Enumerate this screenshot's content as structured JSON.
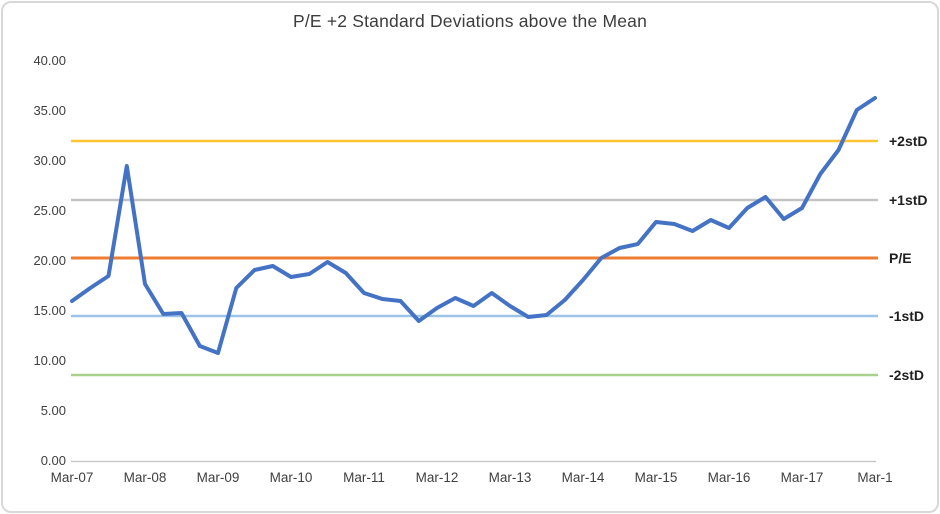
{
  "chart_data": {
    "type": "line",
    "title": "P/E +2 Standard Deviations above the Mean",
    "x_categories": [
      "Mar-07",
      "Mar-08",
      "Mar-09",
      "Mar-10",
      "Mar-11",
      "Mar-12",
      "Mar-13",
      "Mar-14",
      "Mar-15",
      "Mar-16",
      "Mar-17",
      "Mar-1"
    ],
    "y_axis": {
      "min": 0,
      "max": 40,
      "ticks": [
        {
          "label": "0.00",
          "value": 0
        },
        {
          "label": "5.00",
          "value": 5
        },
        {
          "label": "10.00",
          "value": 10
        },
        {
          "label": "15.00",
          "value": 15
        },
        {
          "label": "20.00",
          "value": 20
        },
        {
          "label": "25.00",
          "value": 25
        },
        {
          "label": "30.00",
          "value": 30
        },
        {
          "label": "35.00",
          "value": 35
        },
        {
          "label": "40.00",
          "value": 40
        }
      ]
    },
    "grid": false,
    "legend_position": "right-edge-labels",
    "series": [
      {
        "name": "P/E",
        "color": "#4472C4",
        "x": [
          "Mar-07",
          "Jun-07",
          "Sep-07",
          "Dec-07",
          "Mar-08",
          "Jun-08",
          "Sep-08",
          "Dec-08",
          "Mar-09",
          "Jun-09",
          "Sep-09",
          "Dec-09",
          "Mar-10",
          "Jun-10",
          "Sep-10",
          "Dec-10",
          "Mar-11",
          "Jun-11",
          "Sep-11",
          "Dec-11",
          "Mar-12",
          "Jun-12",
          "Sep-12",
          "Dec-12",
          "Mar-13",
          "Jun-13",
          "Sep-13",
          "Dec-13",
          "Mar-14",
          "Jun-14",
          "Sep-14",
          "Dec-14",
          "Mar-15",
          "Jun-15",
          "Sep-15",
          "Dec-15",
          "Mar-16",
          "Jun-16",
          "Sep-16",
          "Dec-16",
          "Mar-17",
          "Jun-17",
          "Sep-17",
          "Dec-17",
          "Mar-18"
        ],
        "values": [
          15.9,
          17.2,
          18.4,
          29.4,
          17.6,
          14.6,
          14.7,
          11.4,
          10.7,
          17.2,
          19.0,
          19.4,
          18.3,
          18.6,
          19.8,
          18.7,
          16.7,
          16.1,
          15.9,
          13.9,
          15.2,
          16.2,
          15.4,
          16.7,
          15.4,
          14.3,
          14.5,
          16.0,
          18.0,
          20.2,
          21.2,
          21.6,
          23.8,
          23.6,
          22.9,
          24.0,
          23.2,
          25.2,
          26.3,
          24.1,
          25.2,
          28.6,
          31.0,
          35.0,
          36.2
        ]
      }
    ],
    "reference_lines": [
      {
        "label": "+2stD",
        "value": 31.9,
        "color": "#FFC431"
      },
      {
        "label": "+1stD",
        "value": 26.0,
        "color": "#C3C3C3"
      },
      {
        "label": "P/E",
        "value": 20.2,
        "color": "#ED7D31"
      },
      {
        "label": "-1stD",
        "value": 14.4,
        "color": "#9DC3E6"
      },
      {
        "label": "-2stD",
        "value": 8.5,
        "color": "#A9D18E"
      }
    ]
  }
}
